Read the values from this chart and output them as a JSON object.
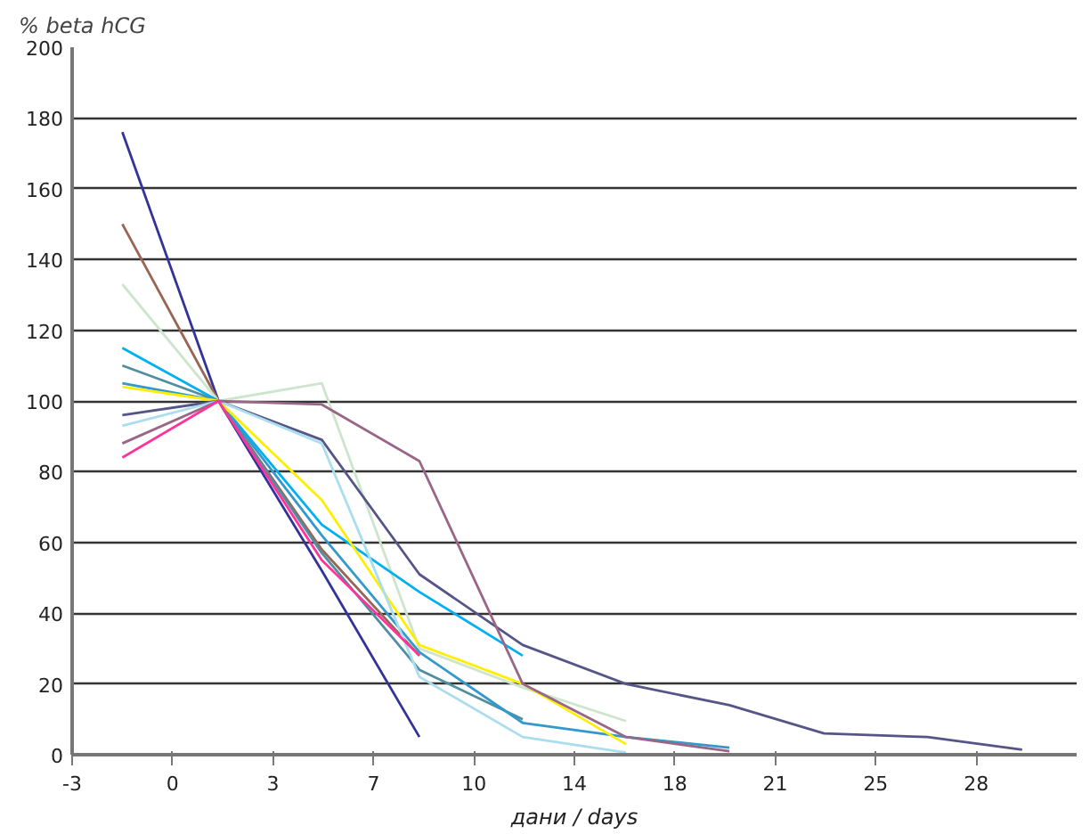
{
  "chart_data": {
    "type": "line",
    "ylabel": "% beta hCG",
    "xlabel": "дани / days",
    "x": [
      -1.75,
      1.6,
      5.2,
      8.6,
      12.2,
      15.8,
      19.4,
      22.7,
      26.3,
      29.6
    ],
    "xlim": [
      -3.5,
      31.5
    ],
    "xticks": [
      {
        "value": -3.5,
        "label": "-3"
      },
      {
        "value": 0,
        "label": "0"
      },
      {
        "value": 3.5,
        "label": "3"
      },
      {
        "value": 7,
        "label": "7"
      },
      {
        "value": 10.5,
        "label": "10"
      },
      {
        "value": 14,
        "label": "14"
      },
      {
        "value": 17.5,
        "label": "18"
      },
      {
        "value": 21,
        "label": "21"
      },
      {
        "value": 24.5,
        "label": "25"
      },
      {
        "value": 28,
        "label": "28"
      }
    ],
    "ylim": [
      0,
      200
    ],
    "yticks": [
      0,
      20,
      40,
      60,
      80,
      100,
      120,
      140,
      160,
      180,
      200
    ],
    "grid": "y",
    "marker": "none",
    "line_style": "solid",
    "series": [
      {
        "color": "#333399",
        "values": [
          176,
          100,
          52,
          5,
          null,
          null,
          null,
          null,
          null,
          null
        ]
      },
      {
        "color": "#996655",
        "values": [
          150,
          100,
          58,
          28,
          null,
          null,
          null,
          null,
          null,
          null
        ]
      },
      {
        "color": "#cce5cc",
        "values": [
          133,
          100,
          105,
          30,
          19,
          9.5,
          null,
          null,
          null,
          null
        ]
      },
      {
        "color": "#00b0f0",
        "values": [
          115,
          100,
          65,
          46,
          28,
          null,
          null,
          null,
          null,
          null
        ]
      },
      {
        "color": "#4f8fa0",
        "values": [
          110,
          100,
          57,
          24,
          10,
          null,
          null,
          null,
          null,
          null
        ]
      },
      {
        "color": "#3399cc",
        "values": [
          105,
          100,
          62,
          29,
          9,
          5,
          2,
          null,
          null,
          null
        ]
      },
      {
        "color": "#ffee00",
        "values": [
          104,
          100,
          72,
          31,
          20,
          3,
          null,
          null,
          null,
          null
        ]
      },
      {
        "color": "#555588",
        "values": [
          96,
          100,
          89,
          51,
          31,
          20,
          14,
          6,
          5,
          1.4
        ]
      },
      {
        "color": "#aaddee",
        "values": [
          93,
          100,
          88,
          22,
          5,
          0.6,
          null,
          null,
          null,
          null
        ]
      },
      {
        "color": "#996688",
        "values": [
          88,
          100,
          99,
          83,
          20,
          5,
          1,
          null,
          null,
          null
        ]
      },
      {
        "color": "#ff3399",
        "values": [
          84,
          100,
          55,
          28,
          null,
          null,
          null,
          null,
          null,
          null
        ]
      }
    ]
  }
}
